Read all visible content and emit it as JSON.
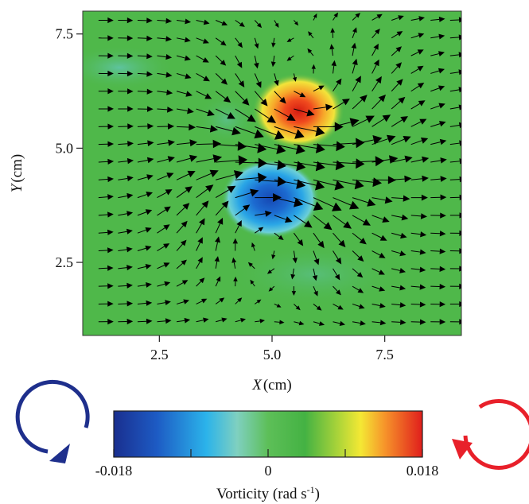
{
  "chart_data": {
    "type": "heatmap",
    "subtype": "vector-field-over-vorticity",
    "xlabel": {
      "symbol": "X",
      "unit": "(cm)"
    },
    "ylabel": {
      "symbol": "Y",
      "unit": "(cm)"
    },
    "xlim": [
      0.8,
      9.2
    ],
    "ylim": [
      0.9,
      8.0
    ],
    "x_ticks": [
      "2.5",
      "5.0",
      "7.5"
    ],
    "x_tick_values": [
      2.5,
      5.0,
      7.5
    ],
    "y_ticks": [
      "7.5",
      "5.0",
      "2.5"
    ],
    "y_tick_values": [
      7.5,
      5.0,
      2.5
    ],
    "colorbar": {
      "title": "Vorticity (rad s",
      "title_sup": "-1",
      "title_close": ")",
      "min": -0.018,
      "max": 0.018,
      "tick_labels": [
        "-0.018",
        "0",
        "0.018"
      ],
      "tick_values": [
        -0.018,
        0,
        0.018
      ]
    },
    "vortices": [
      {
        "sign": "positive",
        "center_x": 5.6,
        "center_y": 5.7,
        "peak": 0.018
      },
      {
        "sign": "negative",
        "center_x": 4.9,
        "center_y": 3.8,
        "peak": -0.018
      }
    ],
    "background_flow": "rightward",
    "rotation_indicators": [
      {
        "side": "left",
        "direction": "counterclockwise",
        "color": "#1e2f8c"
      },
      {
        "side": "right",
        "direction": "clockwise",
        "color": "#e8202a"
      }
    ],
    "colors": {
      "background_field": "#4fb84a",
      "positive": "#e0241a",
      "negative": "#1a5cc8",
      "arrow": "#000000"
    }
  }
}
